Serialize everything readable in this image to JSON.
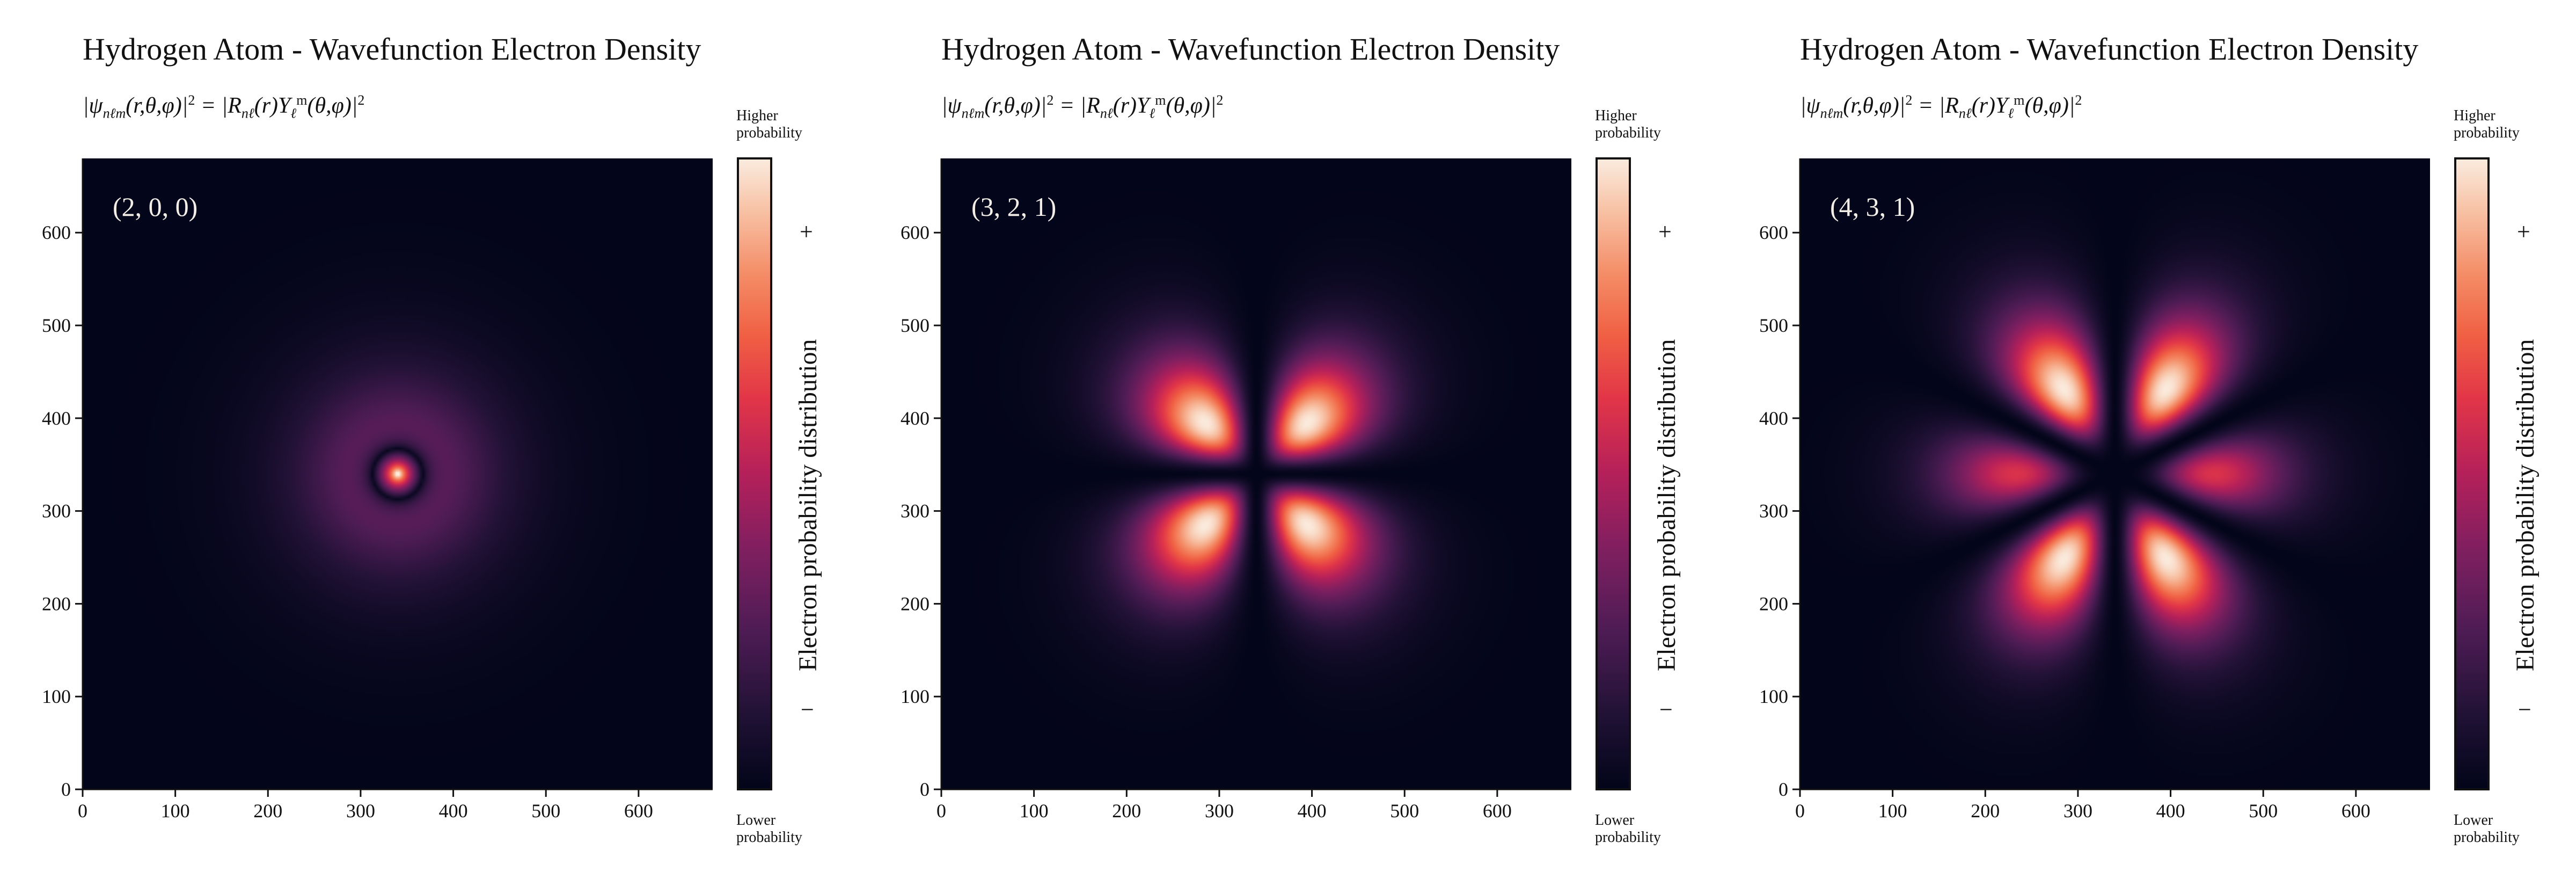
{
  "chart_data": [
    {
      "type": "heatmap",
      "title": "Hydrogen Atom - Wavefunction Electron Density",
      "formula": "|ψnℓm(r,θ,φ)|² = |Rnℓ(r)Yℓm(θ,φ)|²",
      "state": [
        2,
        0,
        0
      ],
      "state_label": "(2, 0, 0)",
      "xlim": [
        0,
        680
      ],
      "ylim": [
        0,
        680
      ],
      "x_ticks": [
        0,
        100,
        200,
        300,
        400,
        500,
        600
      ],
      "y_ticks": [
        0,
        100,
        200,
        300,
        400,
        500,
        600
      ],
      "colorbar": {
        "label": "Electron probability distribution",
        "top_text": "Higher probability",
        "bottom_text": "Lower probability",
        "plus": "+",
        "minus": "−"
      },
      "colormap": "rocket"
    },
    {
      "type": "heatmap",
      "title": "Hydrogen Atom - Wavefunction Electron Density",
      "formula": "|ψnℓm(r,θ,φ)|² = |Rnℓ(r)Yℓm(θ,φ)|²",
      "state": [
        3,
        2,
        1
      ],
      "state_label": "(3, 2, 1)",
      "xlim": [
        0,
        680
      ],
      "ylim": [
        0,
        680
      ],
      "x_ticks": [
        0,
        100,
        200,
        300,
        400,
        500,
        600
      ],
      "y_ticks": [
        0,
        100,
        200,
        300,
        400,
        500,
        600
      ],
      "colorbar": {
        "label": "Electron probability distribution",
        "top_text": "Higher probability",
        "bottom_text": "Lower probability",
        "plus": "+",
        "minus": "−"
      },
      "colormap": "rocket"
    },
    {
      "type": "heatmap",
      "title": "Hydrogen Atom - Wavefunction Electron Density",
      "formula": "|ψnℓm(r,θ,φ)|² = |Rnℓ(r)Yℓm(θ,φ)|²",
      "state": [
        4,
        3,
        1
      ],
      "state_label": "(4, 3, 1)",
      "xlim": [
        0,
        680
      ],
      "ylim": [
        0,
        680
      ],
      "x_ticks": [
        0,
        100,
        200,
        300,
        400,
        500,
        600
      ],
      "y_ticks": [
        0,
        100,
        200,
        300,
        400,
        500,
        600
      ],
      "colorbar": {
        "label": "Electron probability distribution",
        "top_text": "Higher probability",
        "bottom_text": "Lower probability",
        "plus": "+",
        "minus": "−"
      },
      "colormap": "rocket"
    }
  ]
}
